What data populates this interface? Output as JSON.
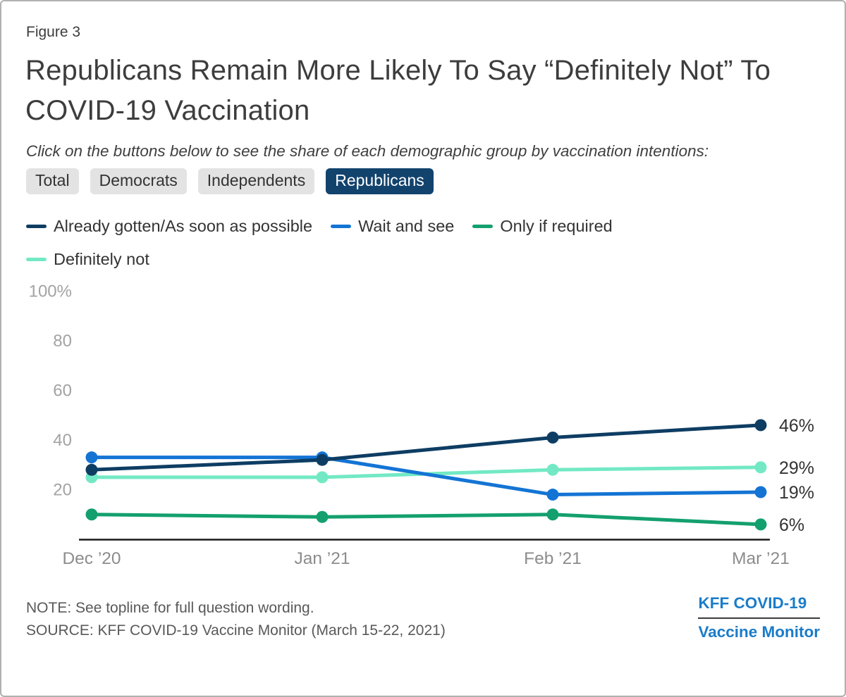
{
  "figure_label": "Figure 3",
  "title": "Republicans Remain More Likely To Say “Definitely Not” To COVID-19 Vaccination",
  "subtitle": "Click on the buttons below to see the share of each demographic group by vaccination intentions:",
  "buttons": [
    {
      "label": "Total",
      "active": false
    },
    {
      "label": "Democrats",
      "active": false
    },
    {
      "label": "Independents",
      "active": false
    },
    {
      "label": "Republicans",
      "active": true
    }
  ],
  "button_colors": {
    "active_bg": "#12436d",
    "active_text": "#ffffff",
    "inactive_bg": "#e3e3e3",
    "inactive_text": "#333333"
  },
  "chart_data": {
    "type": "line",
    "x": [
      "Dec ’20",
      "Jan ’21",
      "Feb ’21",
      "Mar ’21"
    ],
    "series": [
      {
        "name": "Already gotten/As soon as possible",
        "color": "#0e3d63",
        "values": [
          28,
          32,
          41,
          46
        ],
        "end_label": "46%"
      },
      {
        "name": "Wait and see",
        "color": "#1474d4",
        "values": [
          33,
          33,
          18,
          19
        ],
        "end_label": "19%"
      },
      {
        "name": "Only if required",
        "color": "#13a06e",
        "values": [
          10,
          9,
          10,
          6
        ],
        "end_label": "6%"
      },
      {
        "name": "Definitely not",
        "color": "#72e9c4",
        "values": [
          25,
          25,
          28,
          29
        ],
        "end_label": "29%"
      }
    ],
    "y_ticks": [
      {
        "value": 100,
        "label": "100%"
      },
      {
        "value": 80,
        "label": "80"
      },
      {
        "value": 60,
        "label": "60"
      },
      {
        "value": 40,
        "label": "40"
      },
      {
        "value": 20,
        "label": "20"
      }
    ],
    "ylim": [
      0,
      100
    ],
    "grid": false,
    "legend_position": "top",
    "axis_colors": {
      "y_tick_text": "#a3a3a3",
      "x_tick_text": "#8c8c8c",
      "end_label_text": "#333333",
      "baseline": "#1a1a1a"
    }
  },
  "note": "NOTE: See topline for full question wording.",
  "source": "SOURCE: KFF COVID-19 Vaccine Monitor (March 15-22, 2021)",
  "logo": {
    "line1": "KFF COVID-19",
    "line2": "Vaccine Monitor",
    "color": "#1a7cc9"
  }
}
